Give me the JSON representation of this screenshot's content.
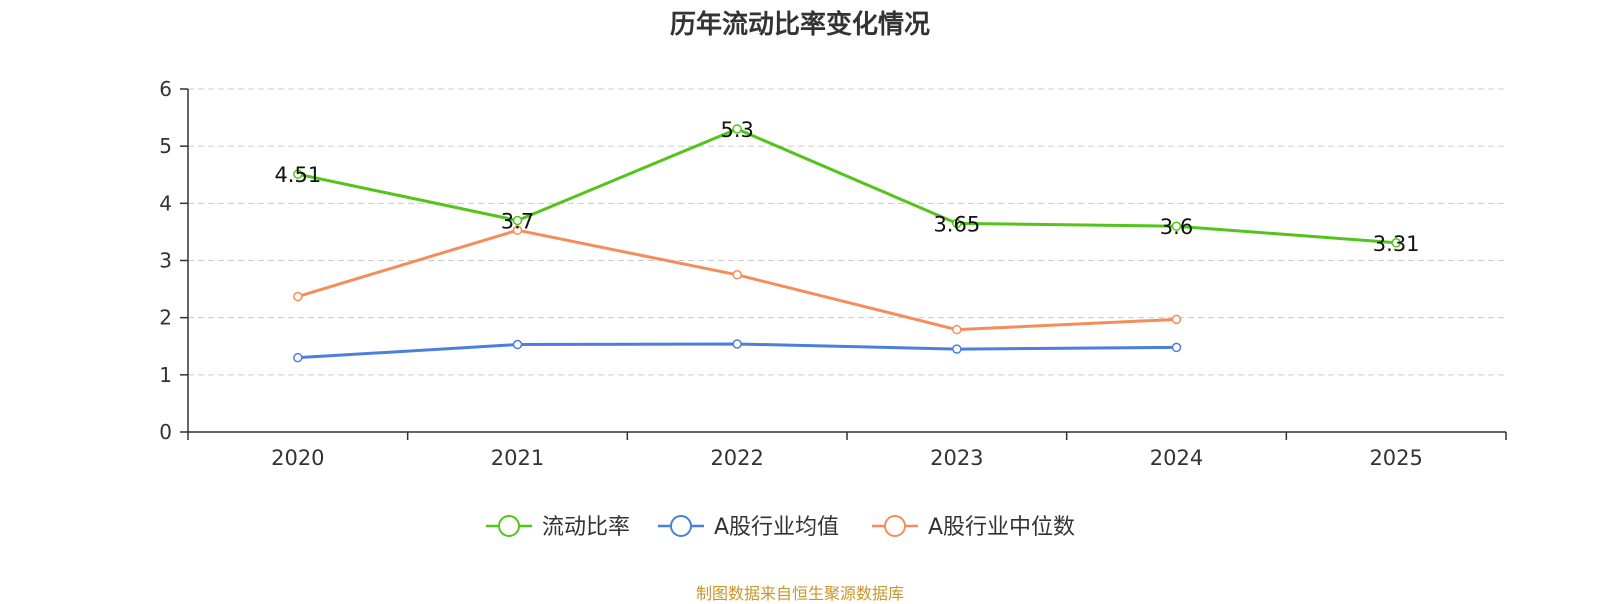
{
  "chart_data": {
    "type": "line",
    "title": "历年流动比率变化情况",
    "categories": [
      "2020",
      "2021",
      "2022",
      "2023",
      "2024",
      "2025"
    ],
    "ylim": [
      0,
      6
    ],
    "yticks": [
      0,
      1,
      2,
      3,
      4,
      5,
      6
    ],
    "grid": true,
    "legend_position": "bottom",
    "series": [
      {
        "name": "流动比率",
        "color": "#52c41a",
        "values": [
          4.51,
          3.7,
          5.3,
          3.65,
          3.6,
          3.31
        ],
        "labels": [
          "4.51",
          "3.7",
          "5.3",
          "3.65",
          "3.6",
          "3.31"
        ]
      },
      {
        "name": "A股行业均值",
        "color": "#4a7fdc",
        "values": [
          1.3,
          1.53,
          1.54,
          1.45,
          1.48,
          null
        ]
      },
      {
        "name": "A股行业中位数",
        "color": "#f58d5a",
        "values": [
          2.37,
          3.53,
          2.75,
          1.79,
          1.97,
          null
        ]
      }
    ]
  },
  "source": {
    "text": "制图数据来自恒生聚源数据库",
    "color": "#c8962b"
  }
}
